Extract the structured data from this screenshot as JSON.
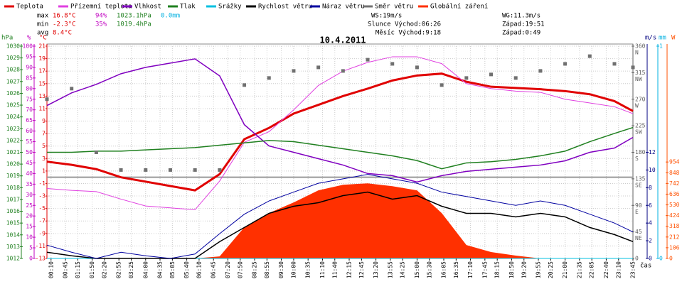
{
  "chart_data": {
    "type": "line",
    "title": "10.4.2011",
    "x_label": "čas",
    "x": [
      0,
      60,
      120,
      180,
      240,
      300,
      360,
      420,
      480,
      540,
      600,
      660,
      720,
      780,
      840,
      900,
      960,
      1020,
      1080,
      1140,
      1200,
      1260,
      1320,
      1380,
      1425
    ],
    "xlim": [
      0,
      1425
    ],
    "xticks": [
      {
        "value": 10,
        "label": "00:10"
      },
      {
        "value": 45,
        "label": "00:45"
      },
      {
        "value": 75,
        "label": "01:15"
      },
      {
        "value": 110,
        "label": "01:50"
      },
      {
        "value": 140,
        "label": "02:20"
      },
      {
        "value": 175,
        "label": "02:55"
      },
      {
        "value": 205,
        "label": "03:25"
      },
      {
        "value": 240,
        "label": "04:00"
      },
      {
        "value": 275,
        "label": "04:35"
      },
      {
        "value": 305,
        "label": "05:05"
      },
      {
        "value": 340,
        "label": "05:40"
      },
      {
        "value": 370,
        "label": "06:10"
      },
      {
        "value": 405,
        "label": "06:45"
      },
      {
        "value": 440,
        "label": "07:20"
      },
      {
        "value": 470,
        "label": "07:50"
      },
      {
        "value": 505,
        "label": "08:25"
      },
      {
        "value": 535,
        "label": "08:55"
      },
      {
        "value": 570,
        "label": "09:30"
      },
      {
        "value": 600,
        "label": "10:00"
      },
      {
        "value": 635,
        "label": "10:35"
      },
      {
        "value": 670,
        "label": "11:10"
      },
      {
        "value": 700,
        "label": "11:40"
      },
      {
        "value": 735,
        "label": "12:15"
      },
      {
        "value": 765,
        "label": "12:45"
      },
      {
        "value": 800,
        "label": "13:20"
      },
      {
        "value": 835,
        "label": "13:55"
      },
      {
        "value": 865,
        "label": "14:25"
      },
      {
        "value": 900,
        "label": "15:00"
      },
      {
        "value": 930,
        "label": "15:30"
      },
      {
        "value": 965,
        "label": "16:05"
      },
      {
        "value": 995,
        "label": "16:35"
      },
      {
        "value": 1030,
        "label": "17:10"
      },
      {
        "value": 1065,
        "label": "17:45"
      },
      {
        "value": 1095,
        "label": "18:15"
      },
      {
        "value": 1130,
        "label": "18:50"
      },
      {
        "value": 1160,
        "label": "19:20"
      },
      {
        "value": 1195,
        "label": "19:55"
      },
      {
        "value": 1225,
        "label": "20:25"
      },
      {
        "value": 1260,
        "label": "21:00"
      },
      {
        "value": 1295,
        "label": "21:35"
      },
      {
        "value": 1325,
        "label": "22:05"
      },
      {
        "value": 1360,
        "label": "22:40"
      },
      {
        "value": 1390,
        "label": "23:10"
      },
      {
        "value": 1425,
        "label": "23:45"
      }
    ],
    "grid": true,
    "axes": {
      "hpa": {
        "label": "hPa",
        "color": "#208020",
        "lim": [
          1012,
          1030
        ],
        "ticks": [
          1012,
          1013,
          1014,
          1015,
          1016,
          1017,
          1018,
          1019,
          1020,
          1021,
          1022,
          1023,
          1024,
          1025,
          1026,
          1027,
          1028,
          1029,
          1030
        ]
      },
      "pct": {
        "label": "%",
        "color": "#c000c0",
        "lim": [
          0,
          100
        ],
        "ticks": [
          0,
          5,
          10,
          15,
          20,
          25,
          30,
          35,
          40,
          45,
          50,
          55,
          60,
          65,
          70,
          75,
          80,
          85,
          90,
          95,
          100
        ]
      },
      "temp": {
        "label": "°C",
        "color": "#e00000",
        "lim": [
          -13,
          21
        ],
        "ticks": [
          -13,
          -11,
          -9,
          -7,
          -5,
          -3,
          -1,
          1,
          3,
          5,
          7,
          9,
          11,
          13,
          15,
          17,
          19,
          21
        ]
      },
      "deg": {
        "color": "#606060",
        "lim": [
          0,
          360
        ],
        "ticks": [
          0,
          45,
          90,
          135,
          180,
          225,
          270,
          315,
          360
        ],
        "compass": [
          "NE",
          "E",
          "SE",
          "S",
          "SW",
          "W",
          "NW",
          "N"
        ]
      },
      "ms": {
        "label": "m/s",
        "color": "#000080",
        "lim": [
          0,
          24
        ],
        "ticks": [
          0,
          2,
          4,
          6,
          8,
          10,
          12
        ]
      },
      "mm": {
        "label": "mm",
        "color": "#00b0e0",
        "lim": [
          0,
          1
        ],
        "ticks": [
          0,
          1
        ]
      },
      "w": {
        "label": "W",
        "color": "#ff5000",
        "lim": [
          0,
          2100
        ],
        "ticks": [
          0,
          106,
          212,
          318,
          424,
          530,
          636,
          742,
          848,
          954
        ]
      }
    },
    "series": [
      {
        "name": "Teplota",
        "color": "#e00000",
        "axis": "temp",
        "kind": "line",
        "width": 3,
        "values": [
          2.5,
          2.0,
          1.3,
          0.0,
          -0.7,
          -1.4,
          -2.1,
          0.5,
          6.1,
          7.9,
          10.2,
          11.6,
          13.0,
          14.2,
          15.5,
          16.3,
          16.6,
          15.3,
          14.5,
          14.3,
          14.1,
          13.8,
          13.3,
          12.2,
          10.6
        ]
      },
      {
        "name": "Přízemní teplota",
        "color": "#e040e0",
        "axis": "temp",
        "kind": "line",
        "width": 1,
        "values": [
          -1.8,
          -2.1,
          -2.3,
          -3.5,
          -4.6,
          -4.9,
          -5.2,
          -0.6,
          5.6,
          7.3,
          10.8,
          14.7,
          17.0,
          18.4,
          19.3,
          19.3,
          18.2,
          15.0,
          14.2,
          13.8,
          13.6,
          12.5,
          11.9,
          11.3,
          10.2
        ]
      },
      {
        "name": "Vlhkost",
        "color": "#8000c0",
        "axis": "pct",
        "kind": "line",
        "width": 1.5,
        "values": [
          72,
          78,
          82,
          87,
          90,
          92,
          94,
          86,
          63,
          53,
          50,
          47,
          44,
          40,
          39,
          36,
          39,
          41,
          42,
          43,
          44,
          46,
          50,
          52,
          57
        ]
      },
      {
        "name": "Tlak",
        "color": "#208020",
        "axis": "hpa",
        "kind": "line",
        "width": 1.5,
        "values": [
          1021.0,
          1021.0,
          1021.1,
          1021.1,
          1021.2,
          1021.3,
          1021.4,
          1021.6,
          1021.8,
          1022.0,
          1021.9,
          1021.6,
          1021.3,
          1021.0,
          1020.7,
          1020.3,
          1019.6,
          1020.1,
          1020.2,
          1020.4,
          1020.7,
          1021.1,
          1021.9,
          1022.6,
          1023.1
        ]
      },
      {
        "name": "Srážky",
        "color": "#00c0e0",
        "axis": "mm",
        "kind": "line",
        "width": 1,
        "values": [
          0,
          0,
          0,
          0,
          0,
          0,
          0,
          0,
          0,
          0,
          0,
          0,
          0,
          0,
          0,
          0,
          0,
          0,
          0,
          0,
          0,
          0,
          0,
          0,
          0
        ]
      },
      {
        "name": "Rychlost větru",
        "color": "#000000",
        "axis": "ms",
        "kind": "line",
        "width": 1.5,
        "values": [
          0.7,
          0.3,
          0,
          0,
          0,
          0,
          0,
          1.9,
          3.5,
          5.1,
          5.9,
          6.3,
          7.1,
          7.5,
          6.7,
          7.1,
          5.9,
          5.1,
          5.1,
          4.7,
          5.1,
          4.7,
          3.5,
          2.7,
          1.9
        ]
      },
      {
        "name": "Náraz větru",
        "color": "#0000a0",
        "axis": "ms",
        "kind": "line",
        "width": 1,
        "values": [
          1.5,
          0.7,
          0,
          0.7,
          0.3,
          0,
          0.5,
          2.8,
          5,
          6.5,
          7.5,
          8.5,
          9,
          9.5,
          9,
          8.5,
          7.5,
          7,
          6.5,
          6,
          6.5,
          6,
          5,
          4,
          3
        ]
      },
      {
        "name": "Směr větru",
        "color": "#707070",
        "axis": "deg",
        "kind": "scatter",
        "width": 2,
        "values": [
          270,
          288,
          180,
          150,
          150,
          150,
          150,
          150,
          294,
          306,
          318,
          324,
          318,
          337,
          330,
          324,
          294,
          306,
          312,
          306,
          318,
          330,
          343,
          330,
          324
        ]
      },
      {
        "name": "Globální záření",
        "color": "#ff3000",
        "axis": "w",
        "kind": "area",
        "width": 1,
        "values": [
          0,
          0,
          0,
          0,
          0,
          0,
          0,
          20,
          309,
          449,
          554,
          673,
          729,
          743,
          715,
          673,
          449,
          133,
          63,
          28,
          0,
          0,
          0,
          0,
          0
        ]
      }
    ]
  },
  "stats": [
    {
      "name": "max",
      "temp": "16.8°C",
      "humidity": "94%",
      "pressure": "1023.1hPa",
      "rain": "0.0mm"
    },
    {
      "name": "min",
      "temp": "-2.3°C",
      "humidity": "35%",
      "pressure": "1019.4hPa"
    },
    {
      "name": "avg",
      "temp": "8.4°C"
    }
  ],
  "info": {
    "ws": "WS:19m/s",
    "wg": "WG:11.3m/s",
    "sun": "Slunce Východ:06:26",
    "sun_set": "Západ:19:51",
    "moon": "Měsíc Východ:9:18",
    "moon_set": "Západ:0:49"
  }
}
